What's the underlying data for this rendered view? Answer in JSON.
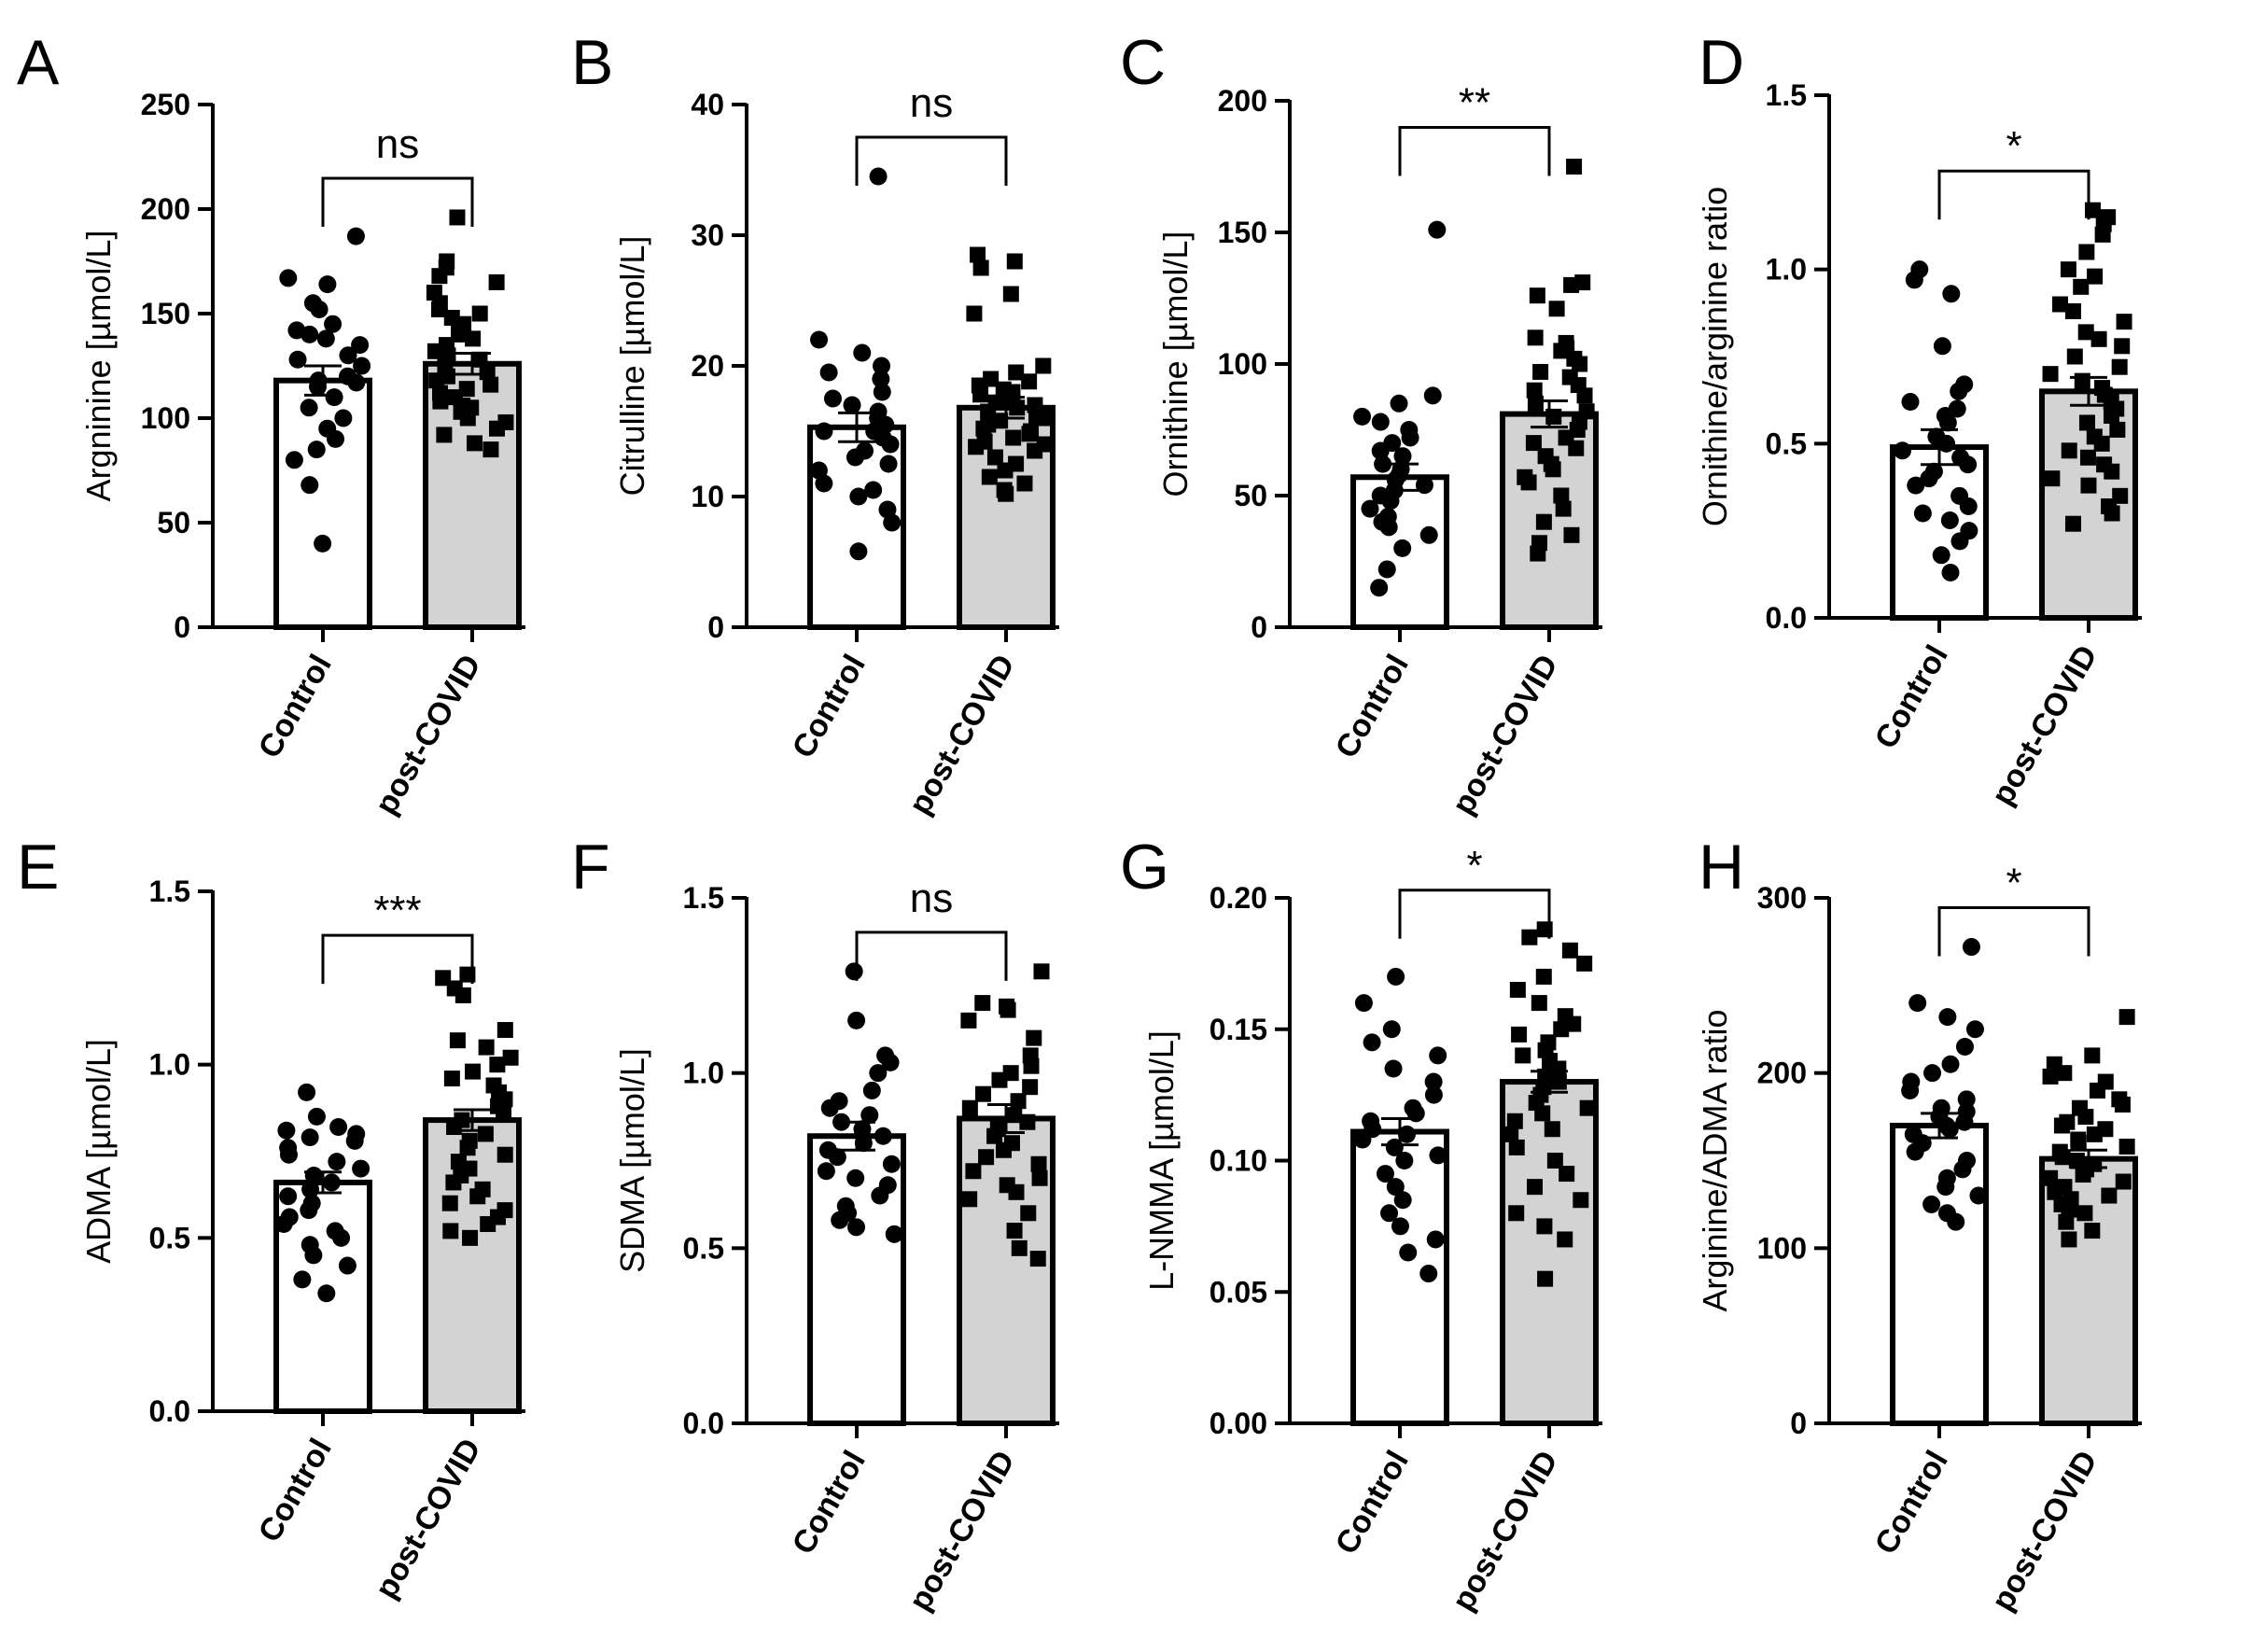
{
  "colors": {
    "control_bar": "#ffffff",
    "post_covid_bar": "#d3d3d3",
    "outline": "#000000",
    "points": "#000000"
  },
  "chart_data": [
    {
      "panel": "A",
      "type": "bar",
      "categories": [
        "Control",
        "post-COVID"
      ],
      "ylabel": "Argninine [µmol/L]",
      "ylim": [
        0,
        250
      ],
      "yticks": [
        0,
        50,
        100,
        150,
        200,
        250
      ],
      "ytick_labels": [
        "0",
        "50",
        "100",
        "150",
        "200",
        "250"
      ],
      "significance": "ns",
      "series": [
        {
          "name": "Control",
          "marker": "circle",
          "mean": 118,
          "sem": 7,
          "points": [
            187,
            167,
            164,
            155,
            152,
            145,
            142,
            140,
            138,
            135,
            130,
            128,
            125,
            120,
            118,
            117,
            115,
            110,
            105,
            100,
            95,
            90,
            85,
            80,
            68,
            40
          ]
        },
        {
          "name": "post-COVID",
          "marker": "square",
          "mean": 126,
          "sem": 5,
          "points": [
            196,
            175,
            172,
            168,
            165,
            160,
            155,
            152,
            150,
            148,
            145,
            142,
            140,
            138,
            135,
            132,
            130,
            128,
            125,
            122,
            120,
            118,
            116,
            114,
            112,
            110,
            108,
            106,
            105,
            103,
            100,
            98,
            95,
            92,
            88,
            85
          ]
        }
      ]
    },
    {
      "panel": "B",
      "type": "bar",
      "categories": [
        "Control",
        "post-COVID"
      ],
      "ylabel": "Citrulline [µmol/L]",
      "ylim": [
        0,
        40
      ],
      "yticks": [
        0,
        10,
        20,
        30,
        40
      ],
      "ytick_labels": [
        "0",
        "10",
        "20",
        "30",
        "40"
      ],
      "significance": "ns",
      "series": [
        {
          "name": "Control",
          "marker": "circle",
          "mean": 15.3,
          "sem": 1.1,
          "points": [
            34.5,
            22,
            21,
            20,
            19.5,
            19,
            18,
            17.5,
            17,
            16.5,
            16,
            15.5,
            15,
            15,
            14.5,
            14,
            13.5,
            13,
            12.5,
            12,
            11,
            10.5,
            10,
            9,
            8,
            5.8
          ]
        },
        {
          "name": "post-COVID",
          "marker": "square",
          "mean": 16.8,
          "sem": 0.8,
          "points": [
            28.5,
            28,
            27.5,
            25.5,
            24,
            20,
            19.5,
            19,
            18.8,
            18.5,
            18.2,
            18,
            17.8,
            17.5,
            17.2,
            17,
            16.8,
            16.5,
            16.2,
            16,
            15.8,
            15.5,
            15.2,
            15,
            14.8,
            14.5,
            14.2,
            14,
            13.8,
            13.5,
            13,
            12.5,
            12,
            11.5,
            11,
            10.5,
            10.2
          ]
        }
      ]
    },
    {
      "panel": "C",
      "type": "bar",
      "categories": [
        "Control",
        "post-COVID"
      ],
      "ylabel": "Ornithine [µmol/L]",
      "ylim": [
        0,
        200
      ],
      "yticks": [
        0,
        50,
        100,
        150,
        200
      ],
      "ytick_labels": [
        "0",
        "50",
        "100",
        "150",
        "200"
      ],
      "significance": "**",
      "series": [
        {
          "name": "Control",
          "marker": "circle",
          "mean": 57,
          "sem": 5,
          "points": [
            151,
            88,
            85,
            80,
            78,
            75,
            72,
            70,
            67,
            65,
            62,
            60,
            58,
            56,
            54,
            52,
            50,
            48,
            45,
            42,
            40,
            38,
            35,
            30,
            22,
            15
          ]
        },
        {
          "name": "post-COVID",
          "marker": "square",
          "mean": 81,
          "sem": 5,
          "points": [
            175,
            131,
            130,
            126,
            121,
            110,
            108,
            106,
            105,
            102,
            100,
            97,
            95,
            92,
            90,
            88,
            85,
            82,
            80,
            78,
            75,
            72,
            70,
            68,
            65,
            62,
            60,
            57,
            55,
            50,
            45,
            40,
            35,
            32,
            28
          ]
        }
      ]
    },
    {
      "panel": "D",
      "type": "bar",
      "categories": [
        "Control",
        "post-COVID"
      ],
      "ylabel": "Ornithine/arginine ratio",
      "ylim": [
        0,
        1.5
      ],
      "yticks": [
        0,
        0.5,
        1.0,
        1.5
      ],
      "ytick_labels": [
        "0.0",
        "0.5",
        "1.0",
        "1.5"
      ],
      "significance": "*",
      "series": [
        {
          "name": "Control",
          "marker": "circle",
          "mean": 0.49,
          "sem": 0.05,
          "points": [
            1.0,
            0.97,
            0.93,
            0.78,
            0.67,
            0.65,
            0.62,
            0.6,
            0.58,
            0.56,
            0.52,
            0.5,
            0.48,
            0.46,
            0.44,
            0.42,
            0.4,
            0.38,
            0.35,
            0.32,
            0.3,
            0.28,
            0.25,
            0.22,
            0.18,
            0.13
          ]
        },
        {
          "name": "post-COVID",
          "marker": "square",
          "mean": 0.65,
          "sem": 0.04,
          "points": [
            1.17,
            1.15,
            1.13,
            1.1,
            1.05,
            1.0,
            0.98,
            0.95,
            0.9,
            0.88,
            0.85,
            0.82,
            0.8,
            0.78,
            0.75,
            0.72,
            0.7,
            0.68,
            0.66,
            0.64,
            0.62,
            0.6,
            0.58,
            0.56,
            0.54,
            0.52,
            0.5,
            0.48,
            0.46,
            0.44,
            0.42,
            0.4,
            0.38,
            0.35,
            0.32,
            0.3,
            0.27
          ]
        }
      ]
    },
    {
      "panel": "E",
      "type": "bar",
      "categories": [
        "Control",
        "post-COVID"
      ],
      "ylabel": "ADMA [µmol/L]",
      "ylim": [
        0,
        1.5
      ],
      "yticks": [
        0,
        0.5,
        1.0,
        1.5
      ],
      "ytick_labels": [
        "0.0",
        "0.5",
        "1.0",
        "1.5"
      ],
      "significance": "***",
      "series": [
        {
          "name": "Control",
          "marker": "circle",
          "mean": 0.66,
          "sem": 0.03,
          "points": [
            0.92,
            0.85,
            0.82,
            0.81,
            0.8,
            0.79,
            0.78,
            0.76,
            0.74,
            0.72,
            0.7,
            0.68,
            0.66,
            0.64,
            0.62,
            0.6,
            0.58,
            0.56,
            0.54,
            0.52,
            0.5,
            0.48,
            0.45,
            0.42,
            0.38,
            0.34
          ]
        },
        {
          "name": "post-COVID",
          "marker": "square",
          "mean": 0.84,
          "sem": 0.03,
          "points": [
            1.26,
            1.25,
            1.22,
            1.2,
            1.1,
            1.07,
            1.05,
            1.02,
            1.0,
            0.98,
            0.96,
            0.94,
            0.92,
            0.9,
            0.88,
            0.86,
            0.84,
            0.82,
            0.8,
            0.78,
            0.76,
            0.74,
            0.72,
            0.7,
            0.68,
            0.66,
            0.64,
            0.62,
            0.6,
            0.58,
            0.56,
            0.54,
            0.52,
            0.5
          ]
        }
      ]
    },
    {
      "panel": "F",
      "type": "bar",
      "categories": [
        "Control",
        "post-COVID"
      ],
      "ylabel": "SDMA [µmol/L]",
      "ylim": [
        0,
        1.5
      ],
      "yticks": [
        0,
        0.5,
        1.0,
        1.5
      ],
      "ytick_labels": [
        "0.0",
        "0.5",
        "1.0",
        "1.5"
      ],
      "significance": "ns",
      "series": [
        {
          "name": "Control",
          "marker": "circle",
          "mean": 0.82,
          "sem": 0.04,
          "points": [
            1.29,
            1.15,
            1.05,
            1.03,
            1.0,
            0.95,
            0.92,
            0.9,
            0.88,
            0.86,
            0.84,
            0.82,
            0.8,
            0.78,
            0.76,
            0.74,
            0.72,
            0.7,
            0.68,
            0.65,
            0.62,
            0.6,
            0.58,
            0.56,
            0.54
          ]
        },
        {
          "name": "post-COVID",
          "marker": "square",
          "mean": 0.87,
          "sem": 0.04,
          "points": [
            1.29,
            1.2,
            1.19,
            1.18,
            1.15,
            1.1,
            1.05,
            1.02,
            1.0,
            0.98,
            0.96,
            0.94,
            0.92,
            0.9,
            0.88,
            0.86,
            0.84,
            0.82,
            0.8,
            0.78,
            0.76,
            0.74,
            0.72,
            0.7,
            0.68,
            0.66,
            0.64,
            0.6,
            0.55,
            0.5,
            0.47
          ]
        }
      ]
    },
    {
      "panel": "G",
      "type": "bar",
      "categories": [
        "Control",
        "post-COVID"
      ],
      "ylabel": "L-NMMA [µmol/L]",
      "ylim": [
        0,
        0.2
      ],
      "yticks": [
        0,
        0.05,
        0.1,
        0.15,
        0.2
      ],
      "ytick_labels": [
        "0.00",
        "0.05",
        "0.10",
        "0.15",
        "0.20"
      ],
      "significance": "*",
      "series": [
        {
          "name": "Control",
          "marker": "circle",
          "mean": 0.111,
          "sem": 0.005,
          "points": [
            0.17,
            0.16,
            0.15,
            0.145,
            0.14,
            0.135,
            0.13,
            0.125,
            0.12,
            0.118,
            0.115,
            0.112,
            0.11,
            0.108,
            0.105,
            0.102,
            0.1,
            0.095,
            0.09,
            0.085,
            0.08,
            0.075,
            0.07,
            0.065,
            0.057
          ]
        },
        {
          "name": "post-COVID",
          "marker": "square",
          "mean": 0.13,
          "sem": 0.004,
          "points": [
            0.188,
            0.185,
            0.18,
            0.175,
            0.17,
            0.165,
            0.16,
            0.155,
            0.152,
            0.15,
            0.148,
            0.145,
            0.142,
            0.14,
            0.138,
            0.135,
            0.132,
            0.13,
            0.128,
            0.125,
            0.122,
            0.12,
            0.118,
            0.115,
            0.112,
            0.11,
            0.105,
            0.1,
            0.095,
            0.09,
            0.085,
            0.08,
            0.075,
            0.07,
            0.055
          ]
        }
      ]
    },
    {
      "panel": "H",
      "type": "bar",
      "categories": [
        "Control",
        "post-COVID"
      ],
      "ylabel": "Arginine/ADMA ratio",
      "ylim": [
        0,
        300
      ],
      "yticks": [
        0,
        100,
        200,
        300
      ],
      "ytick_labels": [
        "0",
        "100",
        "200",
        "300"
      ],
      "significance": "*",
      "series": [
        {
          "name": "Control",
          "marker": "circle",
          "mean": 170,
          "sem": 7,
          "points": [
            272,
            240,
            232,
            225,
            215,
            205,
            200,
            195,
            190,
            185,
            180,
            178,
            175,
            172,
            170,
            168,
            165,
            160,
            155,
            150,
            145,
            140,
            135,
            130,
            125,
            120,
            115
          ]
        },
        {
          "name": "post-COVID",
          "marker": "square",
          "mean": 151,
          "sem": 5,
          "points": [
            232,
            210,
            205,
            200,
            198,
            195,
            190,
            185,
            182,
            180,
            175,
            172,
            170,
            168,
            165,
            162,
            160,
            158,
            155,
            152,
            150,
            148,
            145,
            142,
            140,
            138,
            135,
            132,
            130,
            128,
            125,
            122,
            120,
            115,
            110,
            105
          ]
        }
      ]
    }
  ]
}
